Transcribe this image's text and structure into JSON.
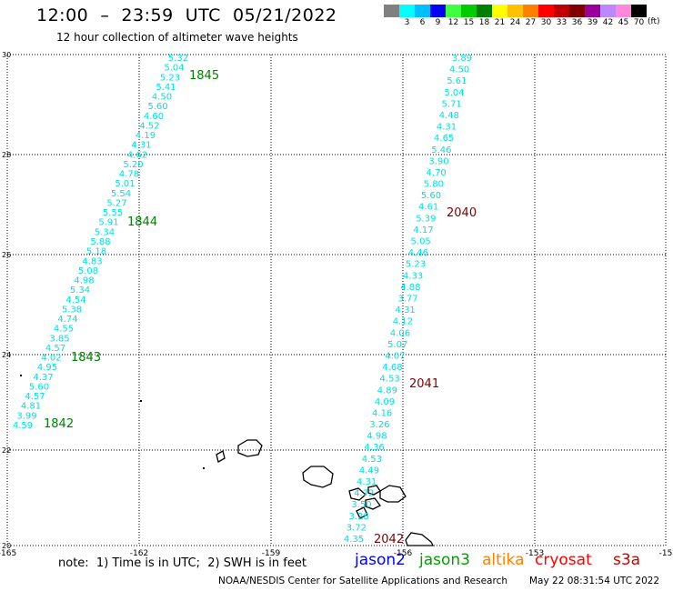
{
  "header": {
    "title": "12:00  –  23:59  UTC  05/21/2022",
    "subtitle": "12 hour collection of altimeter wave heights"
  },
  "legend": {
    "colors": [
      "#808080",
      "#00ffff",
      "#00bfff",
      "#0000ff",
      "#40ff40",
      "#00cc00",
      "#008000",
      "#ffff00",
      "#ffc000",
      "#ff8000",
      "#ff0000",
      "#c00000",
      "#800000",
      "#990099",
      "#bb88ff",
      "#ff88dd",
      "#000000"
    ],
    "labels": [
      "3",
      "6",
      "9",
      "12",
      "15",
      "18",
      "21",
      "24",
      "27",
      "30",
      "33",
      "36",
      "39",
      "42",
      "45",
      "70"
    ],
    "unit": "(ft)"
  },
  "map": {
    "lon_labels": [
      "-165",
      "-162",
      "-159",
      "-156",
      "-153",
      "-15"
    ],
    "lat_labels": [
      "30",
      "28",
      "26",
      "24",
      "22",
      "20"
    ],
    "track_color": "#00e0e0",
    "track1_values": [
      "5.32",
      "5.04",
      "5.23",
      "5.41",
      "4.50",
      "5.60",
      "4.60",
      "4.52",
      "4.19",
      "4.31",
      "4.62",
      "5.20",
      "4.78",
      "5.01",
      "5.54",
      "5.27",
      "5.55",
      "5.91",
      "5.34",
      "5.88",
      "5.18",
      "4.83",
      "5.08",
      "4.98",
      "5.34",
      "4.54",
      "5.38",
      "4.74",
      "4.55",
      "3.85",
      "4.57",
      "4.02",
      "4.95",
      "4.37",
      "5.60",
      "4.57",
      "4.81",
      "3.99",
      "4.59"
    ],
    "track2_values": [
      "3.89",
      "4.50",
      "5.61",
      "5.04",
      "5.71",
      "4.48",
      "4.31",
      "4.65",
      "5.46",
      "3.90",
      "4.70",
      "5.80",
      "5.60",
      "4.61",
      "5.39",
      "4.17",
      "5.05",
      "4.46",
      "5.23",
      "4.33",
      "4.88",
      "3.77",
      "4.31",
      "4.12",
      "4.06",
      "5.07",
      "4.07",
      "4.68",
      "4.53",
      "4.89",
      "4.09",
      "4.16",
      "3.26",
      "4.98",
      "4.36",
      "4.53",
      "4.49",
      "4.31",
      "4.72",
      "3.50",
      "3.28",
      "3.72",
      "4.35"
    ],
    "track1_times": [
      "1845",
      "1844",
      "1843",
      "1842"
    ],
    "track1_time_color": "#008000",
    "track2_times": [
      "2040",
      "2041",
      "2042"
    ],
    "track2_time_color": "#800000"
  },
  "footer": {
    "note": "note:  1) Time is in UTC;  2) SWH is in feet",
    "satellites": [
      {
        "name": "jason2",
        "color": "#0000ff"
      },
      {
        "name": "jason3",
        "color": "#00a000"
      },
      {
        "name": "altika",
        "color": "#ff8000"
      },
      {
        "name": "cryosat",
        "color": "#ff0000"
      },
      {
        "name": "s3a",
        "color": "#cc0000"
      }
    ],
    "credit": "NOAA/NESDIS Center for Satellite Applications and Research",
    "timestamp": "May 22 08:31:54 UTC 2022"
  }
}
